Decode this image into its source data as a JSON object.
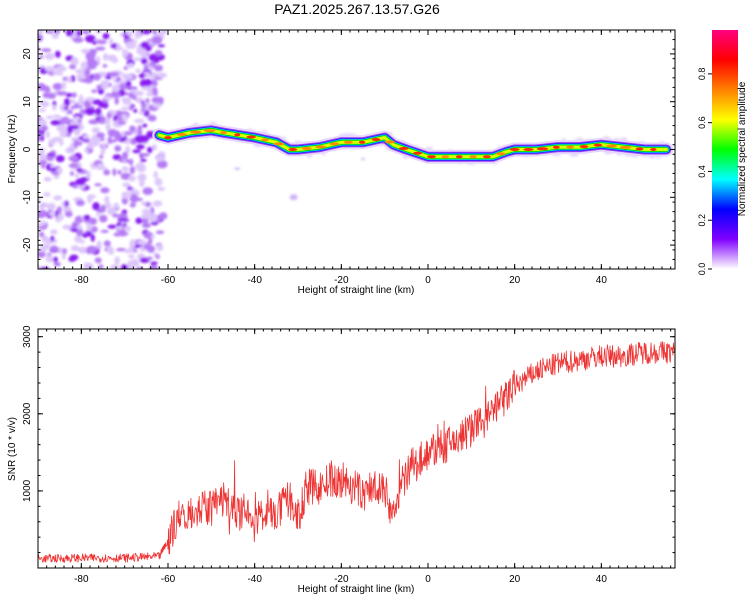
{
  "title": "PAZ1.2025.267.13.57.G26",
  "chart_data": [
    {
      "type": "heatmap",
      "xlabel": "Height of straight line (km)",
      "ylabel": "Frequency (Hz)",
      "xlim": [
        -90,
        57
      ],
      "ylim": [
        -25,
        25
      ],
      "x_ticks": [
        -80,
        -60,
        -40,
        -20,
        0,
        20,
        40
      ],
      "y_ticks": [
        -20,
        -10,
        0,
        10,
        20
      ],
      "ridge": {
        "x": [
          -62,
          -60,
          -55,
          -50,
          -47,
          -40,
          -35,
          -32,
          -30,
          -25,
          -20,
          -15,
          -10,
          -8,
          -5,
          0,
          5,
          10,
          15,
          18,
          20,
          25,
          30,
          35,
          40,
          45,
          50,
          55
        ],
        "freq": [
          3.0,
          2.5,
          3.5,
          4.0,
          3.5,
          2.5,
          1.5,
          0.0,
          0.0,
          0.5,
          1.5,
          1.5,
          2.5,
          1.0,
          0.0,
          -1.5,
          -1.5,
          -1.5,
          -1.5,
          -0.5,
          0.0,
          0.0,
          0.5,
          0.5,
          1.0,
          0.5,
          0.0,
          0.0
        ]
      },
      "colorbar": {
        "label": "Normalized spectral amplitude",
        "ticks": [
          0.0,
          0.2,
          0.4,
          0.6,
          0.8
        ],
        "tick_labels": [
          "0.0",
          "0.2",
          "0.4",
          "0.6",
          "0.8"
        ],
        "colormap": [
          "#ffffff",
          "#8000ff",
          "#0000ff",
          "#00ffff",
          "#00ff00",
          "#ffff00",
          "#ff8000",
          "#ff0000",
          "#ff0080"
        ]
      },
      "grid": false
    },
    {
      "type": "line",
      "xlabel": "Height of straight line (km)",
      "ylabel": "SNR (10 * v/v)",
      "xlim": [
        -90,
        57
      ],
      "ylim": [
        0,
        3100
      ],
      "x_ticks": [
        -80,
        -60,
        -40,
        -20,
        0,
        20,
        40
      ],
      "y_ticks": [
        1000,
        2000,
        3000
      ],
      "color": "#ee3333",
      "x": [
        -90,
        -80,
        -70,
        -62,
        -60,
        -58,
        -55,
        -50,
        -47,
        -45,
        -42,
        -40,
        -37,
        -35,
        -32,
        -30,
        -28,
        -25,
        -22,
        -20,
        -17,
        -15,
        -12,
        -10,
        -8,
        -6,
        -4,
        0,
        5,
        10,
        15,
        20,
        25,
        30,
        35,
        40,
        45,
        50,
        57
      ],
      "y": [
        120,
        130,
        130,
        150,
        350,
        650,
        750,
        780,
        900,
        750,
        700,
        560,
        800,
        700,
        900,
        650,
        1050,
        1050,
        1150,
        1150,
        1050,
        950,
        1100,
        1000,
        700,
        1100,
        1300,
        1500,
        1600,
        1800,
        2000,
        2350,
        2550,
        2650,
        2700,
        2750,
        2750,
        2800,
        2800
      ],
      "grid": false
    }
  ]
}
